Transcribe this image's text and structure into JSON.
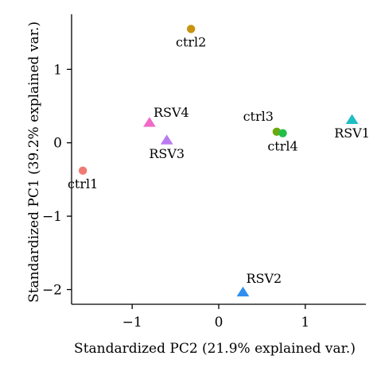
{
  "chart_data": {
    "type": "scatter",
    "xlabel": "Standardized PC2 (21.9% explained var.)",
    "ylabel": "Standardized PC1 (39.2% explained var.)",
    "xlim": [
      -1.7,
      1.7
    ],
    "ylim": [
      -2.2,
      1.75
    ],
    "xticks": [
      -1,
      0,
      1
    ],
    "xtick_labels": [
      "−1",
      "0",
      "1"
    ],
    "yticks": [
      -2,
      -1,
      0,
      1
    ],
    "ytick_labels": [
      "−2",
      "−1",
      "0",
      "1"
    ],
    "grid": false,
    "points": [
      {
        "label": "ctrl1",
        "x": -1.57,
        "y": -0.38,
        "shape": "circle",
        "color": "#f07b73",
        "label_pos": "below"
      },
      {
        "label": "ctrl2",
        "x": -0.32,
        "y": 1.55,
        "shape": "circle",
        "color": "#c8930f",
        "label_pos": "below"
      },
      {
        "label": "ctrl3",
        "x": 0.67,
        "y": 0.15,
        "shape": "circle",
        "color": "#6aa80f",
        "label_pos": "upper-left"
      },
      {
        "label": "ctrl4",
        "x": 0.74,
        "y": 0.13,
        "shape": "circle",
        "color": "#1fbf4a",
        "label_pos": "below"
      },
      {
        "label": "RSV1",
        "x": 1.54,
        "y": 0.31,
        "shape": "triangle",
        "color": "#1fbdc4",
        "label_pos": "below"
      },
      {
        "label": "RSV2",
        "x": 0.28,
        "y": -2.04,
        "shape": "triangle",
        "color": "#2e8ff0",
        "label_pos": "above"
      },
      {
        "label": "RSV3",
        "x": -0.6,
        "y": 0.03,
        "shape": "triangle",
        "color": "#bb7af0",
        "label_pos": "below"
      },
      {
        "label": "RSV4",
        "x": -0.8,
        "y": 0.27,
        "shape": "triangle",
        "color": "#f06bc8",
        "label_pos": "right"
      }
    ]
  }
}
